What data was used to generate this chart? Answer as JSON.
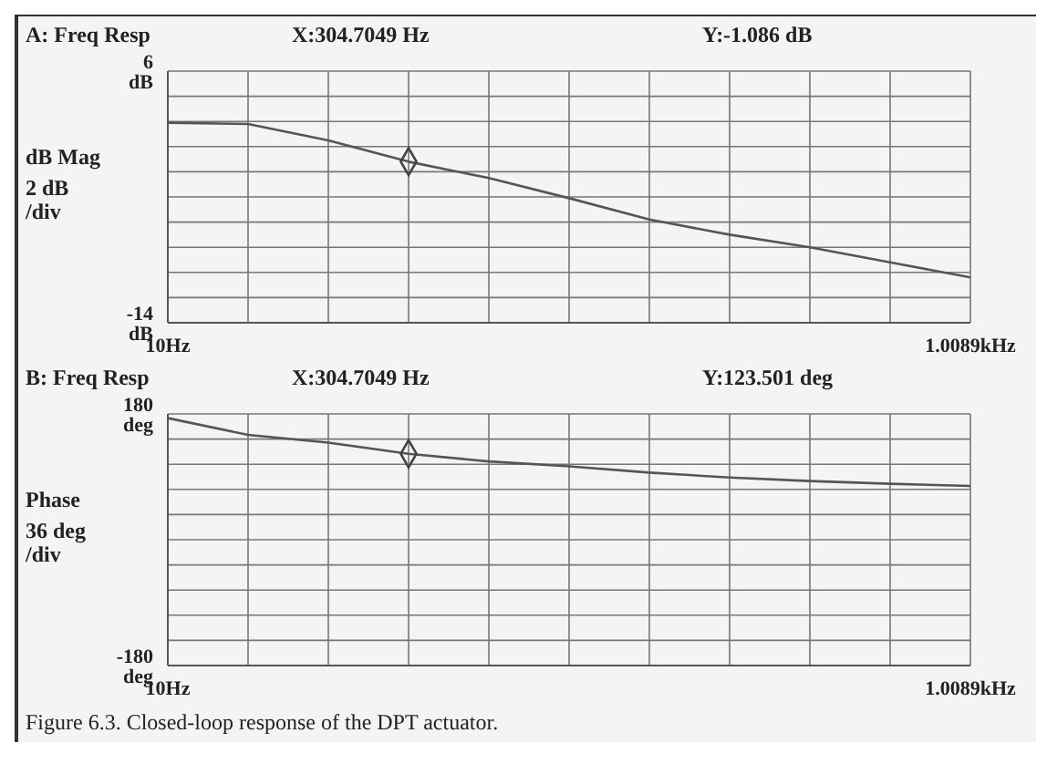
{
  "chart_data": [
    {
      "type": "line",
      "title": "A: Freq Resp",
      "ylabel": "dB Mag",
      "annotations": [
        "X:304.7049 Hz",
        "Y:-1.086 dB",
        "2 dB /div"
      ],
      "categories": [
        "10Hz",
        null,
        null,
        null,
        null,
        null,
        null,
        null,
        null,
        null,
        "1.0089kHz"
      ],
      "series": [
        {
          "color": "#555555",
          "values": [
            1.9,
            1.8,
            0.5,
            -1.2,
            -2.5,
            -4.1,
            -5.8,
            -7.0,
            -8.0,
            -9.2,
            -10.4
          ]
        },
        {
          "type": "scatter",
          "marker": "diamond",
          "color": "#444444",
          "values": [
            null,
            null,
            null,
            -1.2,
            null,
            null,
            null,
            null,
            null,
            null,
            null
          ]
        }
      ],
      "ylim": [
        -14,
        6
      ],
      "yticks": [
        {
          "value": 6,
          "label": "6 dB"
        },
        {
          "value": 4,
          "label": null
        },
        {
          "value": 2,
          "label": null
        },
        {
          "value": 0,
          "label": null
        },
        {
          "value": -2,
          "label": null
        },
        {
          "value": -4,
          "label": null
        },
        {
          "value": -6,
          "label": null
        },
        {
          "value": -8,
          "label": null
        },
        {
          "value": -10,
          "label": null
        },
        {
          "value": -12,
          "label": null
        },
        {
          "value": -14,
          "label": "-14 dB"
        }
      ],
      "grid": true,
      "line_style": "solid"
    },
    {
      "type": "line",
      "title": "B: Freq Resp",
      "ylabel": "Phase",
      "annotations": [
        "X:304.7049 Hz",
        "Y:123.501 deg",
        "36 deg /div",
        "Figure 6.3.  Closed-loop response of the DPT actuator."
      ],
      "categories": [
        "10Hz",
        null,
        null,
        null,
        null,
        null,
        null,
        null,
        null,
        null,
        "1.0089kHz"
      ],
      "series": [
        {
          "color": "#555555",
          "values": [
            174,
            150,
            139,
            123,
            112,
            105,
            96,
            89,
            84,
            80,
            77
          ]
        },
        {
          "type": "scatter",
          "marker": "diamond",
          "color": "#444444",
          "values": [
            null,
            null,
            null,
            123,
            null,
            null,
            null,
            null,
            null,
            null,
            null
          ]
        }
      ],
      "ylim": [
        -180,
        180
      ],
      "yticks": [
        {
          "value": 180,
          "label": "180 deg"
        },
        {
          "value": 144,
          "label": null
        },
        {
          "value": 108,
          "label": null
        },
        {
          "value": 72,
          "label": null
        },
        {
          "value": 36,
          "label": null
        },
        {
          "value": 0,
          "label": null
        },
        {
          "value": -36,
          "label": null
        },
        {
          "value": -72,
          "label": null
        },
        {
          "value": -108,
          "label": null
        },
        {
          "value": -144,
          "label": null
        },
        {
          "value": -180,
          "label": "-180 deg"
        }
      ],
      "grid": true,
      "line_style": "solid"
    }
  ]
}
